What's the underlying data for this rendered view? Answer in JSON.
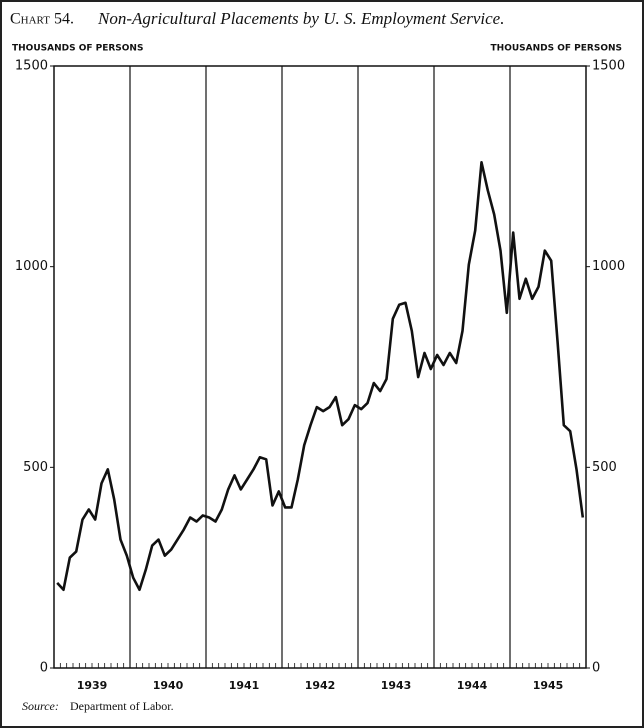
{
  "chart_data": {
    "type": "line",
    "chart_label": "Chart 54.",
    "title": "Non-Agricultural Placements by U. S. Employment Service.",
    "ylabel": "THOUSANDS OF PERSONS",
    "y2label": "THOUSANDS OF PERSONS",
    "source_label": "Source:",
    "source": "Department of Labor.",
    "xlim": [
      1939,
      1946
    ],
    "xticks": [
      {
        "value": 1939.5,
        "label": "1939"
      },
      {
        "value": 1940.5,
        "label": "1940"
      },
      {
        "value": 1941.5,
        "label": "1941"
      },
      {
        "value": 1942.5,
        "label": "1942"
      },
      {
        "value": 1943.5,
        "label": "1943"
      },
      {
        "value": 1944.5,
        "label": "1944"
      },
      {
        "value": 1945.5,
        "label": "1945"
      }
    ],
    "ylim": [
      0,
      1500
    ],
    "yticks": [
      0,
      500,
      1000,
      1500
    ],
    "y2lim": [
      0,
      1500
    ],
    "y2ticks": [
      0,
      500,
      1000,
      1500
    ],
    "x": [
      1939.042,
      1939.125,
      1939.208,
      1939.292,
      1939.375,
      1939.458,
      1939.542,
      1939.625,
      1939.708,
      1939.792,
      1939.875,
      1939.958,
      1940.042,
      1940.125,
      1940.208,
      1940.292,
      1940.375,
      1940.458,
      1940.542,
      1940.625,
      1940.708,
      1940.792,
      1940.875,
      1940.958,
      1941.042,
      1941.125,
      1941.208,
      1941.292,
      1941.375,
      1941.458,
      1941.542,
      1941.625,
      1941.708,
      1941.792,
      1941.875,
      1941.958,
      1942.042,
      1942.125,
      1942.208,
      1942.292,
      1942.375,
      1942.458,
      1942.542,
      1942.625,
      1942.708,
      1942.792,
      1942.875,
      1942.958,
      1943.042,
      1943.125,
      1943.208,
      1943.292,
      1943.375,
      1943.458,
      1943.542,
      1943.625,
      1943.708,
      1943.792,
      1943.875,
      1943.958,
      1944.042,
      1944.125,
      1944.208,
      1944.292,
      1944.375,
      1944.458,
      1944.542,
      1944.625,
      1944.708,
      1944.792,
      1944.875,
      1944.958,
      1945.042,
      1945.125,
      1945.208,
      1945.292,
      1945.375,
      1945.458,
      1945.542,
      1945.625,
      1945.708,
      1945.792,
      1945.875,
      1945.958
    ],
    "series": [
      {
        "color": "#111111",
        "values": [
          212,
          195,
          275,
          290,
          370,
          395,
          370,
          460,
          495,
          420,
          320,
          280,
          225,
          195,
          245,
          305,
          320,
          280,
          295,
          320,
          345,
          375,
          365,
          380,
          375,
          365,
          395,
          445,
          480,
          445,
          470,
          495,
          525,
          520,
          405,
          440,
          400,
          400,
          470,
          555,
          605,
          650,
          640,
          650,
          675,
          605,
          620,
          655,
          645,
          660,
          710,
          690,
          720,
          870,
          905,
          910,
          840,
          725,
          785,
          745,
          780,
          755,
          785,
          760,
          840,
          1005,
          1090,
          1260,
          1190,
          1130,
          1040,
          885,
          1085,
          920,
          970,
          920,
          950,
          1040,
          1015,
          815,
          605,
          590,
          495,
          375
        ]
      }
    ]
  }
}
